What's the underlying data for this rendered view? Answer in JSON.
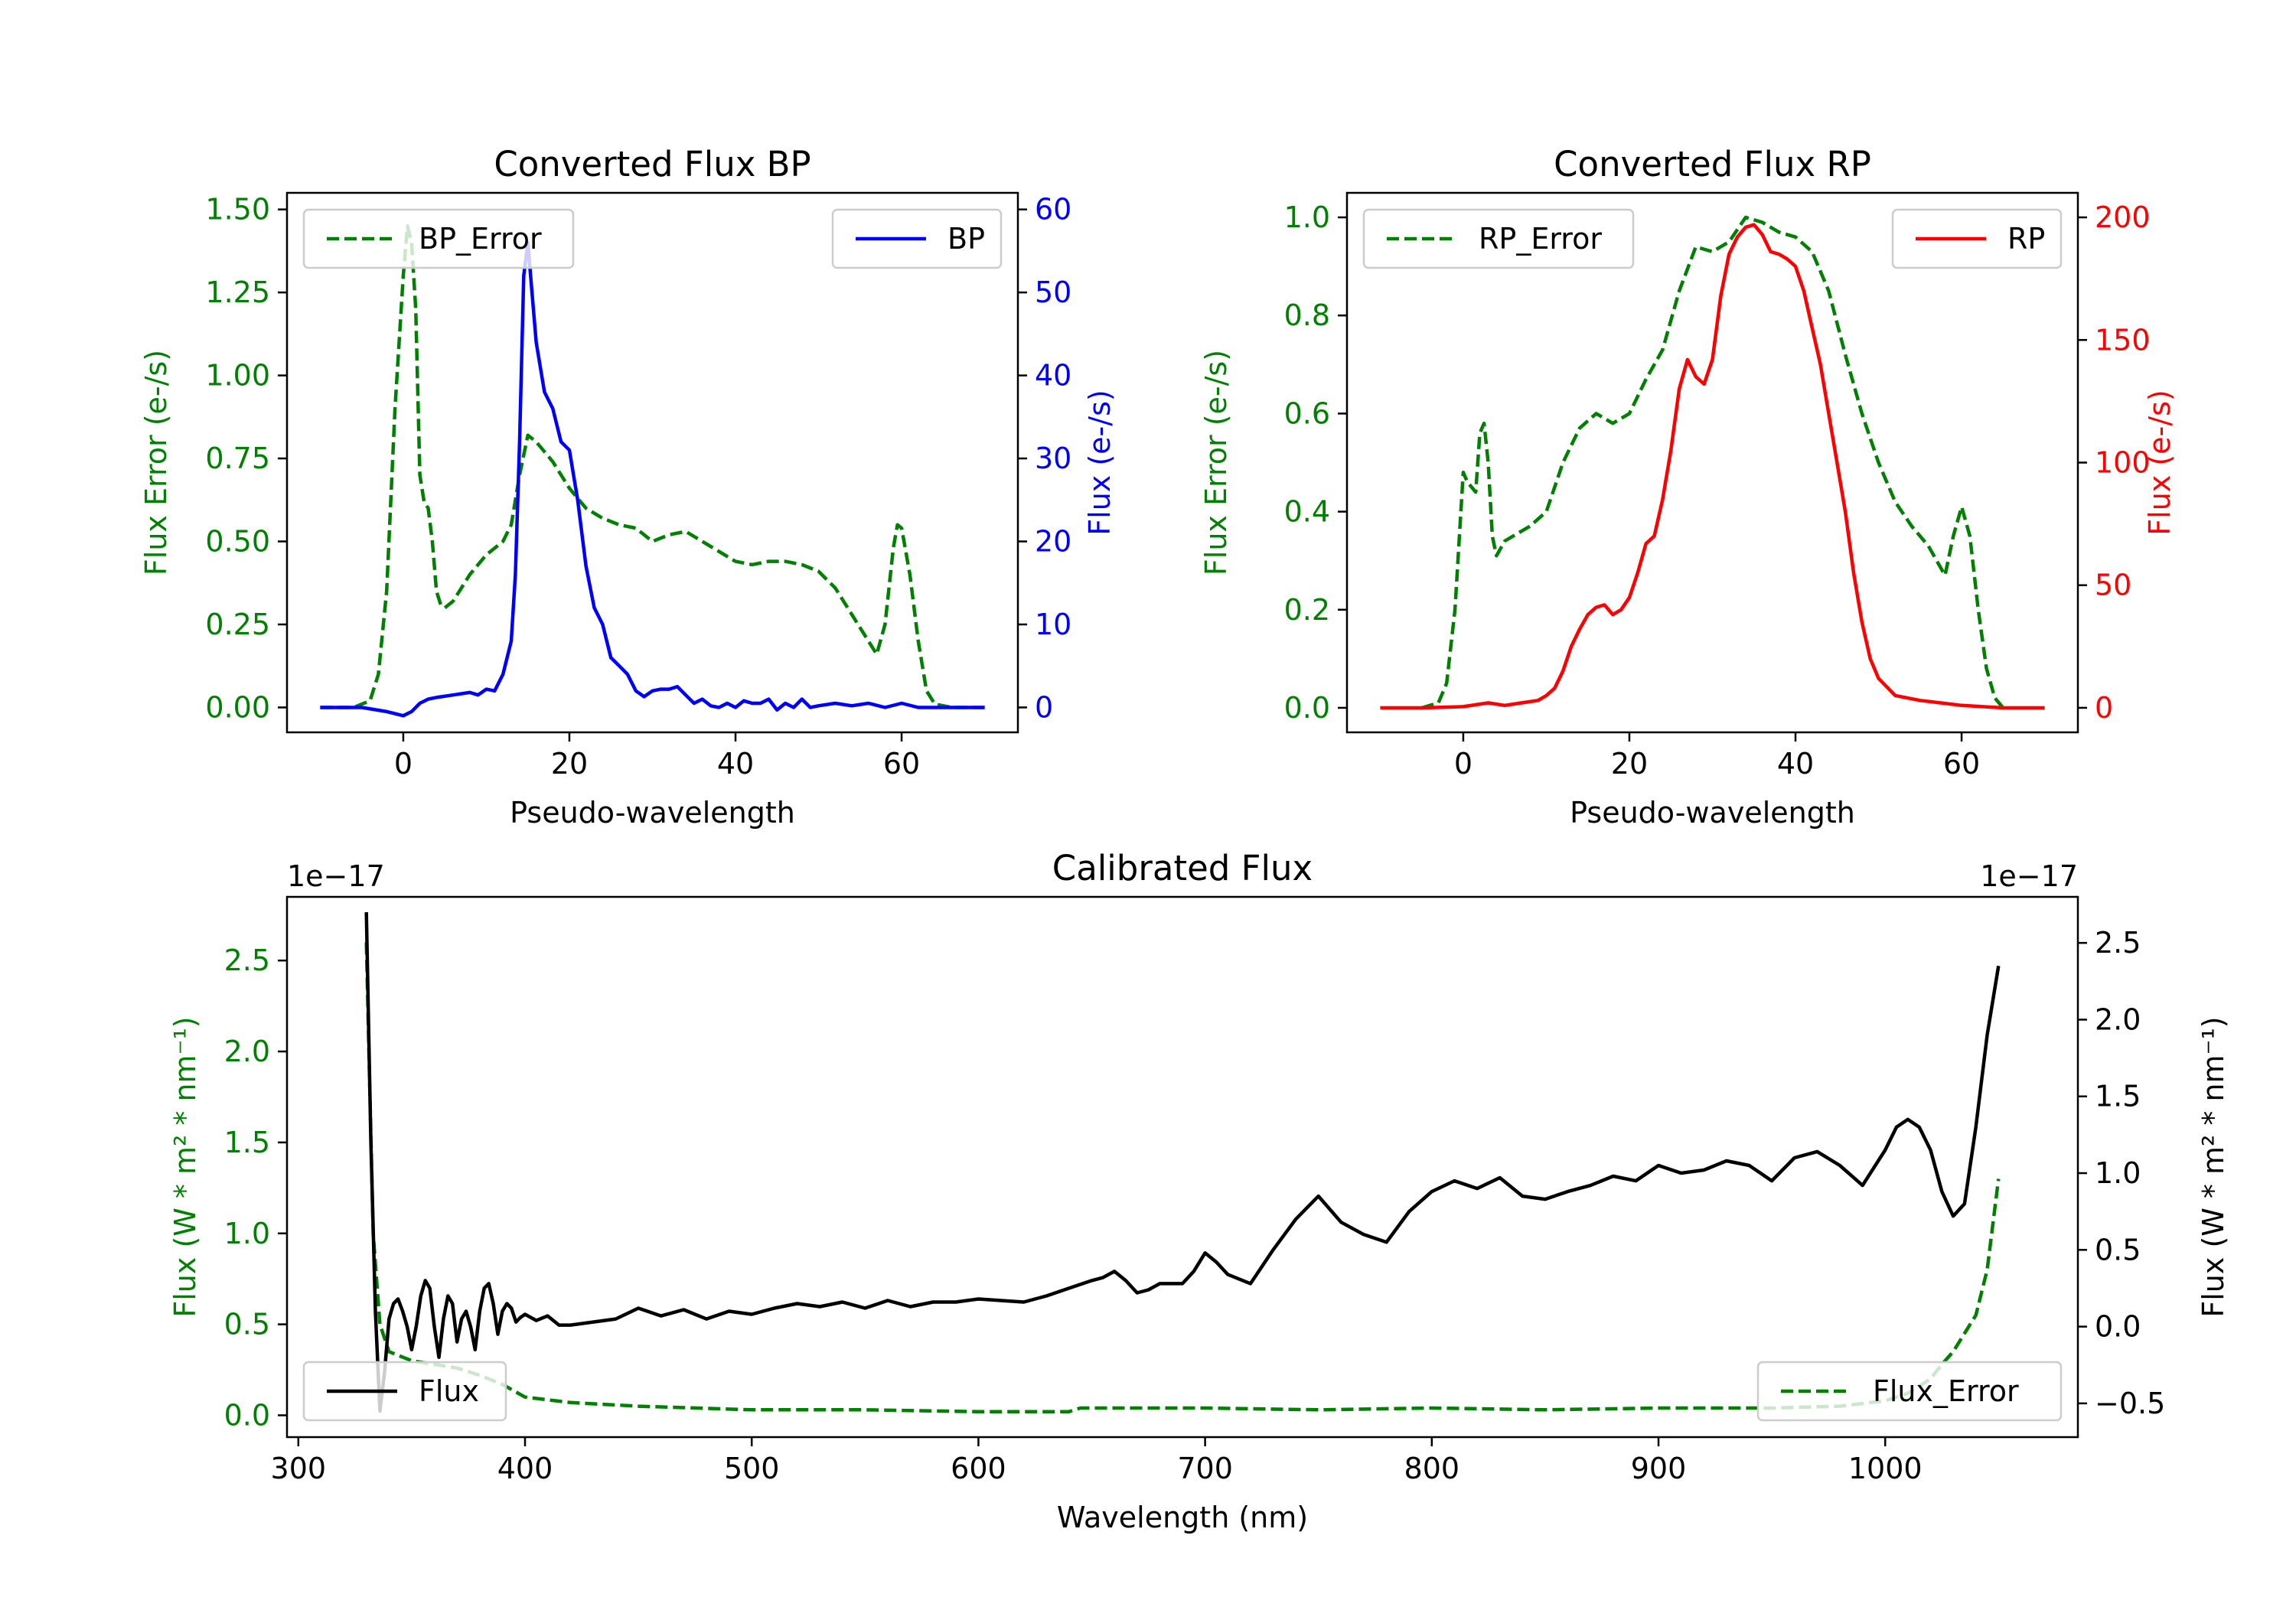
{
  "figure": {
    "background": "#ffffff"
  },
  "colors": {
    "error": "#008000",
    "bp": "#0000ff",
    "rp": "#ff0000",
    "flux": "#000000",
    "axis": "#000000"
  },
  "chart_data": [
    {
      "type": "line",
      "title": "Converted Flux BP",
      "xlabel": "Pseudo-wavelength",
      "ylabel_left": "Flux Error (e-/s)",
      "ylabel_right": "Flux (e-/s)",
      "xlim": [
        -14,
        74
      ],
      "ylim_left": [
        -0.075,
        1.55
      ],
      "ylim_right": [
        -3,
        62
      ],
      "xticks": [
        0,
        20,
        40,
        60
      ],
      "xtick_labels": [
        "0",
        "20",
        "40",
        "60"
      ],
      "yticks_left": [
        0,
        0.25,
        0.5,
        0.75,
        1.0,
        1.25,
        1.5
      ],
      "ytick_labels_left": [
        "0.00",
        "0.25",
        "0.50",
        "0.75",
        "1.00",
        "1.25",
        "1.50"
      ],
      "yticks_right": [
        0,
        10,
        20,
        30,
        40,
        50,
        60
      ],
      "ytick_labels_right": [
        "0",
        "10",
        "20",
        "30",
        "40",
        "50",
        "60"
      ],
      "legend": [
        {
          "label": "BP_Error",
          "style": "dashed",
          "color": "#008000",
          "position": "upper left"
        },
        {
          "label": "BP",
          "style": "solid",
          "color": "#0000ff",
          "position": "upper right"
        }
      ],
      "series": [
        {
          "name": "BP_Error",
          "axis": "left",
          "style": "dashed",
          "color": "#008000",
          "x": [
            -10,
            -6,
            -4,
            -3,
            -2,
            -1,
            0,
            0.5,
            1,
            1.5,
            2,
            2.5,
            3,
            3.5,
            4,
            4.5,
            5,
            6,
            7,
            8,
            10,
            12,
            13,
            14,
            15,
            16,
            18,
            20,
            22,
            24,
            26,
            28,
            30,
            32,
            34,
            36,
            38,
            40,
            42,
            44,
            46,
            48,
            50,
            52,
            54,
            55,
            56,
            57,
            58,
            59,
            59.5,
            60,
            61,
            62,
            63,
            64,
            66,
            68,
            70
          ],
          "y": [
            0,
            0,
            0.02,
            0.1,
            0.35,
            0.9,
            1.3,
            1.45,
            1.4,
            1.2,
            0.7,
            0.62,
            0.6,
            0.5,
            0.35,
            0.31,
            0.3,
            0.32,
            0.36,
            0.4,
            0.46,
            0.5,
            0.55,
            0.7,
            0.82,
            0.8,
            0.74,
            0.66,
            0.6,
            0.57,
            0.55,
            0.54,
            0.5,
            0.52,
            0.53,
            0.5,
            0.47,
            0.44,
            0.43,
            0.44,
            0.44,
            0.43,
            0.41,
            0.36,
            0.28,
            0.24,
            0.2,
            0.16,
            0.25,
            0.48,
            0.55,
            0.54,
            0.4,
            0.2,
            0.05,
            0.01,
            0,
            0,
            0
          ]
        },
        {
          "name": "BP",
          "axis": "right",
          "style": "solid",
          "color": "#0000ff",
          "x": [
            -10,
            -5,
            -2,
            0,
            1,
            2,
            3,
            4,
            6,
            8,
            9,
            10,
            11,
            12,
            13,
            13.5,
            14,
            14.5,
            15,
            15.5,
            16,
            17,
            18,
            19,
            20,
            21,
            22,
            23,
            24,
            25,
            26,
            27,
            28,
            29,
            30,
            31,
            32,
            33,
            34,
            35,
            36,
            37,
            38,
            39,
            40,
            41,
            42,
            43,
            44,
            45,
            46,
            47,
            48,
            49,
            50,
            52,
            54,
            56,
            58,
            60,
            62,
            66,
            70
          ],
          "y": [
            0,
            0,
            -0.5,
            -1,
            -0.5,
            0.5,
            1,
            1.2,
            1.5,
            1.8,
            1.5,
            2.2,
            2,
            4,
            8,
            16,
            32,
            52,
            56,
            50,
            44,
            38,
            36,
            32,
            31,
            25,
            17,
            12,
            10,
            6,
            5,
            4,
            2,
            1.3,
            2,
            2.2,
            2.2,
            2.5,
            1.5,
            0.5,
            1,
            0.2,
            0,
            0.5,
            0,
            0.8,
            0.5,
            0.5,
            1,
            -0.3,
            0.5,
            0,
            1,
            0,
            0.2,
            0.5,
            0.2,
            0.5,
            0,
            0.5,
            0,
            0,
            0
          ]
        }
      ]
    },
    {
      "type": "line",
      "title": "Converted Flux RP",
      "xlabel": "Pseudo-wavelength",
      "ylabel_left": "Flux Error (e-/s)",
      "ylabel_right": "Flux (e-/s)",
      "xlim": [
        -14,
        74
      ],
      "ylim_left": [
        -0.05,
        1.05
      ],
      "ylim_right": [
        -10,
        210
      ],
      "xticks": [
        0,
        20,
        40,
        60
      ],
      "xtick_labels": [
        "0",
        "20",
        "40",
        "60"
      ],
      "yticks_left": [
        0,
        0.2,
        0.4,
        0.6,
        0.8,
        1.0
      ],
      "ytick_labels_left": [
        "0.0",
        "0.2",
        "0.4",
        "0.6",
        "0.8",
        "1.0"
      ],
      "yticks_right": [
        0,
        50,
        100,
        150,
        200
      ],
      "ytick_labels_right": [
        "0",
        "50",
        "100",
        "150",
        "200"
      ],
      "legend": [
        {
          "label": "RP_Error",
          "style": "dashed",
          "color": "#008000",
          "position": "upper left"
        },
        {
          "label": "RP",
          "style": "solid",
          "color": "#ff0000",
          "position": "upper right"
        }
      ],
      "series": [
        {
          "name": "RP_Error",
          "axis": "left",
          "style": "dashed",
          "color": "#008000",
          "x": [
            -5,
            -3,
            -2,
            -1,
            0,
            0.5,
            1,
            1.5,
            2,
            2.5,
            3,
            3.5,
            4,
            5,
            6,
            7,
            8,
            10,
            12,
            14,
            16,
            18,
            20,
            22,
            24,
            26,
            28,
            30,
            32,
            34,
            36,
            38,
            40,
            42,
            44,
            46,
            48,
            50,
            52,
            54,
            56,
            57,
            58,
            59,
            60,
            61,
            62,
            63,
            64,
            65
          ],
          "y": [
            0,
            0.01,
            0.05,
            0.2,
            0.48,
            0.46,
            0.45,
            0.44,
            0.56,
            0.58,
            0.5,
            0.35,
            0.31,
            0.34,
            0.35,
            0.36,
            0.37,
            0.4,
            0.5,
            0.57,
            0.6,
            0.58,
            0.6,
            0.67,
            0.73,
            0.85,
            0.94,
            0.93,
            0.95,
            1.0,
            0.99,
            0.97,
            0.96,
            0.93,
            0.85,
            0.72,
            0.6,
            0.5,
            0.42,
            0.37,
            0.33,
            0.3,
            0.27,
            0.35,
            0.41,
            0.35,
            0.2,
            0.08,
            0.02,
            0
          ]
        },
        {
          "name": "RP",
          "axis": "right",
          "style": "solid",
          "color": "#ff0000",
          "x": [
            -10,
            -5,
            0,
            3,
            5,
            7,
            9,
            10,
            11,
            12,
            13,
            14,
            15,
            16,
            17,
            18,
            19,
            20,
            21,
            22,
            23,
            24,
            25,
            26,
            27,
            28,
            29,
            30,
            31,
            32,
            33,
            34,
            35,
            36,
            37,
            38,
            39,
            40,
            41,
            42,
            43,
            44,
            45,
            46,
            47,
            48,
            49,
            50,
            52,
            55,
            60,
            65,
            70
          ],
          "y": [
            0,
            0,
            0.5,
            2,
            1,
            2,
            3,
            5,
            8,
            15,
            25,
            32,
            38,
            41,
            42,
            38,
            40,
            45,
            55,
            67,
            70,
            85,
            105,
            130,
            142,
            135,
            132,
            142,
            168,
            185,
            192,
            196,
            197,
            193,
            186,
            185,
            183,
            180,
            170,
            155,
            140,
            120,
            100,
            80,
            55,
            35,
            20,
            12,
            5,
            3,
            1,
            0,
            0
          ]
        }
      ]
    },
    {
      "type": "line",
      "title": "Calibrated Flux",
      "xlabel": "Wavelength (nm)",
      "ylabel_left": "Flux (W * m² * nm⁻¹)",
      "ylabel_right": "Flux (W * m² * nm⁻¹)",
      "offset_left": "1e−17",
      "offset_right": "1e−17",
      "xlim": [
        295,
        1085
      ],
      "ylim_left": [
        -0.12,
        2.85
      ],
      "ylim_right": [
        -0.72,
        2.8
      ],
      "xticks": [
        300,
        400,
        500,
        600,
        700,
        800,
        900,
        1000
      ],
      "xtick_labels": [
        "300",
        "400",
        "500",
        "600",
        "700",
        "800",
        "900",
        "1000"
      ],
      "yticks_left": [
        0,
        0.5,
        1.0,
        1.5,
        2.0,
        2.5
      ],
      "ytick_labels_left": [
        "0.0",
        "0.5",
        "1.0",
        "1.5",
        "2.0",
        "2.5"
      ],
      "yticks_right": [
        -0.5,
        0,
        0.5,
        1.0,
        1.5,
        2.0,
        2.5
      ],
      "ytick_labels_right": [
        "−0.5",
        "0.0",
        "0.5",
        "1.0",
        "1.5",
        "2.0",
        "2.5"
      ],
      "legend": [
        {
          "label": "Flux",
          "style": "solid",
          "color": "#000000",
          "position": "lower left"
        },
        {
          "label": "Flux_Error",
          "style": "dashed",
          "color": "#008000",
          "position": "lower right"
        }
      ],
      "series": [
        {
          "name": "Flux_Error",
          "axis": "left",
          "style": "dashed",
          "color": "#008000",
          "x": [
            330,
            333,
            336,
            340,
            350,
            360,
            370,
            380,
            390,
            400,
            420,
            450,
            500,
            550,
            600,
            640,
            645,
            700,
            750,
            800,
            850,
            900,
            950,
            980,
            1000,
            1010,
            1020,
            1025,
            1030,
            1035,
            1040,
            1045,
            1050
          ],
          "y": [
            2.6,
            1.0,
            0.5,
            0.35,
            0.3,
            0.28,
            0.26,
            0.22,
            0.17,
            0.1,
            0.07,
            0.05,
            0.03,
            0.03,
            0.02,
            0.02,
            0.04,
            0.04,
            0.03,
            0.04,
            0.03,
            0.04,
            0.04,
            0.05,
            0.08,
            0.12,
            0.2,
            0.28,
            0.35,
            0.45,
            0.55,
            0.8,
            1.3
          ]
        },
        {
          "name": "Flux",
          "axis": "right",
          "style": "solid",
          "color": "#000000",
          "x": [
            330,
            332,
            334,
            336,
            338,
            340,
            342,
            344,
            346,
            348,
            350,
            352,
            354,
            356,
            358,
            360,
            362,
            364,
            366,
            368,
            370,
            372,
            374,
            376,
            378,
            380,
            382,
            384,
            386,
            388,
            390,
            392,
            394,
            396,
            398,
            400,
            405,
            410,
            415,
            420,
            430,
            440,
            450,
            460,
            470,
            480,
            490,
            500,
            510,
            520,
            530,
            540,
            550,
            560,
            570,
            580,
            590,
            600,
            610,
            620,
            630,
            640,
            650,
            655,
            660,
            665,
            670,
            675,
            680,
            690,
            695,
            700,
            705,
            710,
            720,
            730,
            740,
            750,
            760,
            770,
            780,
            790,
            800,
            810,
            820,
            830,
            840,
            850,
            860,
            870,
            880,
            890,
            900,
            910,
            920,
            930,
            940,
            950,
            960,
            970,
            980,
            990,
            1000,
            1005,
            1010,
            1015,
            1020,
            1025,
            1030,
            1035,
            1040,
            1045,
            1050
          ],
          "y": [
            2.7,
            1.2,
            0.1,
            -0.55,
            -0.3,
            0.05,
            0.15,
            0.18,
            0.1,
            0.0,
            -0.15,
            0.0,
            0.2,
            0.3,
            0.25,
            0.0,
            -0.2,
            0.05,
            0.2,
            0.15,
            -0.1,
            0.05,
            0.1,
            0.0,
            -0.15,
            0.1,
            0.25,
            0.28,
            0.15,
            -0.05,
            0.1,
            0.15,
            0.12,
            0.03,
            0.06,
            0.08,
            0.04,
            0.07,
            0.01,
            0.01,
            0.03,
            0.05,
            0.12,
            0.07,
            0.11,
            0.05,
            0.1,
            0.08,
            0.12,
            0.15,
            0.13,
            0.16,
            0.12,
            0.17,
            0.13,
            0.16,
            0.16,
            0.18,
            0.17,
            0.16,
            0.2,
            0.25,
            0.3,
            0.32,
            0.36,
            0.3,
            0.22,
            0.24,
            0.28,
            0.28,
            0.36,
            0.48,
            0.42,
            0.34,
            0.28,
            0.5,
            0.7,
            0.85,
            0.68,
            0.6,
            0.55,
            0.75,
            0.88,
            0.95,
            0.9,
            0.97,
            0.85,
            0.83,
            0.88,
            0.92,
            0.98,
            0.95,
            1.05,
            1.0,
            1.02,
            1.08,
            1.05,
            0.95,
            1.1,
            1.14,
            1.05,
            0.92,
            1.15,
            1.3,
            1.35,
            1.3,
            1.15,
            0.88,
            0.72,
            0.8,
            1.3,
            1.9,
            2.35
          ]
        }
      ]
    }
  ]
}
